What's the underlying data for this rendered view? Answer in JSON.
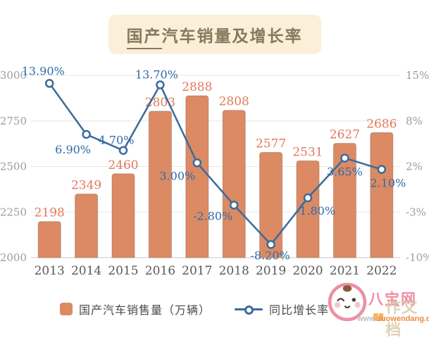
{
  "title": {
    "part1": "国产",
    "part2": "汽车销量及增长率"
  },
  "legend": [
    {
      "label": "国产汽车销售量（万辆）",
      "type": "bar"
    },
    {
      "label": "同比增长率",
      "type": "line"
    }
  ],
  "watermark": {
    "site_name": "八宝网",
    "overlay_text": "作文档",
    "url_prefix": "www.",
    "url_domain": "zuowendang.com"
  },
  "colors": {
    "bar": "#DC8A63",
    "bar_border": "rgba(130,100,80,0.45)",
    "bar_label": "#E37A5D",
    "line": "#3A6B9C",
    "line_label": "#2E6BA8",
    "axis_text": "#9C9C9C",
    "x_text": "#595959",
    "grid": "#E8E8E8",
    "axis_line": "#C9C9C9",
    "title_text": "#87795C",
    "title_bg": "#FCEFD9"
  },
  "chart_data": {
    "type": "bar+line combo",
    "title": "国产汽车销量及增长率",
    "categories": [
      "2013",
      "2014",
      "2015",
      "2016",
      "2017",
      "2018",
      "2019",
      "2020",
      "2021",
      "2022"
    ],
    "series": [
      {
        "name": "国产汽车销售量（万辆）",
        "type": "bar",
        "axis": "left",
        "values": [
          2198,
          2349,
          2460,
          2803,
          2888,
          2808,
          2577,
          2531,
          2627,
          2686
        ],
        "labels": [
          "2198",
          "2349",
          "2460",
          "2803",
          "2888",
          "2808",
          "2577",
          "2531",
          "2627",
          "2686"
        ]
      },
      {
        "name": "同比增长率",
        "type": "line",
        "axis": "right",
        "values": [
          13.9,
          6.9,
          4.7,
          13.7,
          3.0,
          -2.8,
          -8.2,
          -1.8,
          3.65,
          2.1
        ],
        "labels": [
          "13.90%",
          "6.90%",
          "4.70%",
          "13.70%",
          "3.00%",
          "-2.80%",
          "-8.20%",
          "-1.80%",
          "3.65%",
          "2.10%"
        ]
      }
    ],
    "left_axis": {
      "min": 2000,
      "max": 3000,
      "ticks": [
        2000,
        2250,
        2500,
        2750,
        3000
      ],
      "tick_labels": [
        "2000",
        "2250",
        "2500",
        "2750",
        "3000"
      ]
    },
    "right_axis": {
      "min": -10,
      "max": 15,
      "tick_labels": [
        "-10%",
        "-3%",
        "2%",
        "8%",
        "15%"
      ]
    },
    "grid": true,
    "legend_position": "bottom"
  }
}
